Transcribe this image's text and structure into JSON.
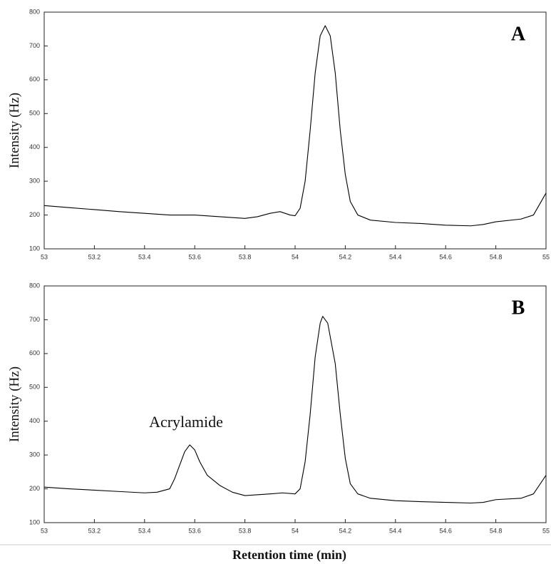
{
  "chart_data": [
    {
      "type": "line",
      "panel_label": "A",
      "ylabel": "Intensity (Hz)",
      "xlim": [
        53,
        55
      ],
      "xticks": [
        53,
        53.2,
        53.4,
        53.6,
        53.8,
        54,
        54.2,
        54.4,
        54.6,
        54.8,
        55
      ],
      "ylim": [
        100,
        800
      ],
      "yticks": [
        100,
        200,
        300,
        400,
        500,
        600,
        700,
        800
      ],
      "color": "#000000",
      "x": [
        53.0,
        53.1,
        53.2,
        53.3,
        53.4,
        53.5,
        53.6,
        53.7,
        53.8,
        53.85,
        53.9,
        53.94,
        53.98,
        54.0,
        54.02,
        54.04,
        54.06,
        54.08,
        54.1,
        54.12,
        54.14,
        54.16,
        54.18,
        54.2,
        54.22,
        54.25,
        54.3,
        54.4,
        54.5,
        54.6,
        54.7,
        54.75,
        54.8,
        54.9,
        54.95,
        55.0
      ],
      "values": [
        228,
        222,
        216,
        210,
        205,
        200,
        200,
        195,
        190,
        195,
        205,
        210,
        200,
        198,
        220,
        300,
        450,
        620,
        730,
        760,
        730,
        620,
        450,
        320,
        240,
        200,
        185,
        178,
        175,
        170,
        168,
        172,
        180,
        188,
        200,
        265
      ]
    },
    {
      "type": "line",
      "panel_label": "B",
      "ylabel": "Intensity (Hz)",
      "xlabel": "Retention time (min)",
      "annotation": "Acrylamide",
      "xlim": [
        53,
        55
      ],
      "xticks": [
        53,
        53.2,
        53.4,
        53.6,
        53.8,
        54,
        54.2,
        54.4,
        54.6,
        54.8,
        55
      ],
      "ylim": [
        100,
        800
      ],
      "yticks": [
        100,
        200,
        300,
        400,
        500,
        600,
        700,
        800
      ],
      "color": "#000000",
      "x": [
        53.0,
        53.1,
        53.2,
        53.3,
        53.4,
        53.45,
        53.5,
        53.52,
        53.54,
        53.56,
        53.58,
        53.6,
        53.62,
        53.65,
        53.7,
        53.75,
        53.8,
        53.9,
        53.95,
        54.0,
        54.02,
        54.04,
        54.06,
        54.08,
        54.1,
        54.11,
        54.13,
        54.16,
        54.18,
        54.2,
        54.22,
        54.25,
        54.3,
        54.4,
        54.5,
        54.6,
        54.7,
        54.75,
        54.8,
        54.9,
        54.95,
        55.0
      ],
      "values": [
        205,
        200,
        196,
        192,
        188,
        190,
        200,
        230,
        270,
        310,
        330,
        315,
        280,
        240,
        210,
        190,
        180,
        185,
        188,
        185,
        200,
        280,
        420,
        590,
        690,
        710,
        690,
        570,
        420,
        290,
        215,
        185,
        172,
        165,
        162,
        160,
        158,
        160,
        168,
        172,
        185,
        240
      ]
    }
  ]
}
